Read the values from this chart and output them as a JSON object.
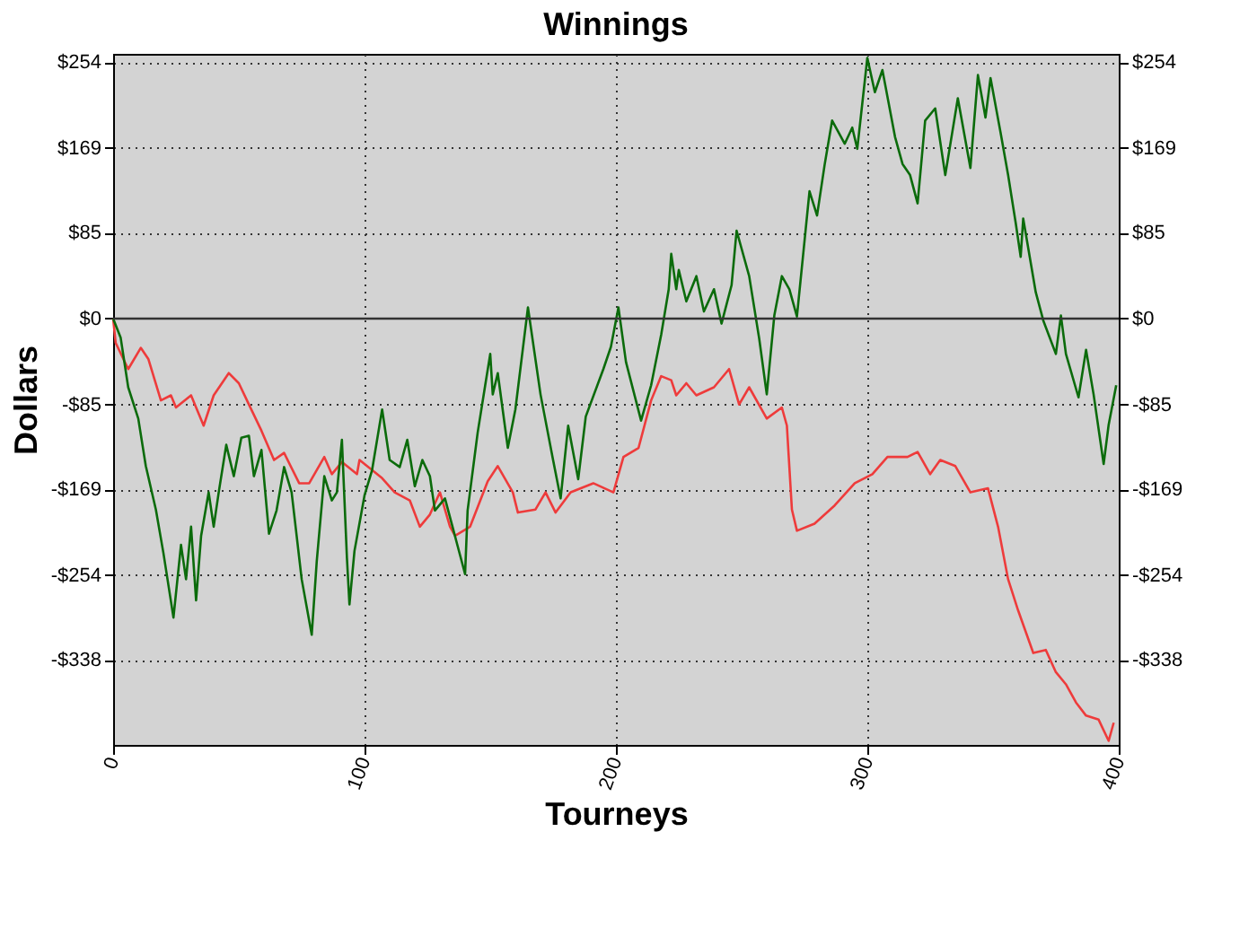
{
  "chart_data": {
    "type": "line",
    "title": "Winnings",
    "xlabel": "Tourneys",
    "ylabel": "Dollars",
    "xlim": [
      0,
      400
    ],
    "xticks": [
      0,
      100,
      200,
      300,
      400
    ],
    "ylim": [
      -422,
      262
    ],
    "yticks": [
      {
        "value": 254,
        "label": "$254"
      },
      {
        "value": 169,
        "label": "$169"
      },
      {
        "value": 85,
        "label": "$85"
      },
      {
        "value": 0,
        "label": "$0"
      },
      {
        "value": -85,
        "label": "-$85"
      },
      {
        "value": -169,
        "label": "-$169"
      },
      {
        "value": -254,
        "label": "-$254"
      },
      {
        "value": -338,
        "label": "-$338"
      }
    ],
    "y2lim": [
      -422,
      262
    ],
    "y2ticks": [
      {
        "value": 254,
        "label": "$254"
      },
      {
        "value": 169,
        "label": "$169"
      },
      {
        "value": 85,
        "label": "$85"
      },
      {
        "value": 0,
        "label": "$0"
      },
      {
        "value": -85,
        "label": "-$85"
      },
      {
        "value": -169,
        "label": "-$169"
      },
      {
        "value": -254,
        "label": "-$254"
      },
      {
        "value": -338,
        "label": "-$338"
      }
    ],
    "grid": true,
    "line_style": "solid",
    "marker": "none",
    "ref_lines": [
      {
        "axis": "y",
        "value": 0,
        "color": "#333333"
      }
    ],
    "series": [
      {
        "color": "#ee3b3b",
        "x": [
          0,
          1,
          6,
          11,
          14,
          19,
          23,
          25,
          31,
          36,
          40,
          46,
          50,
          54,
          59,
          64,
          68,
          74,
          78,
          84,
          87,
          91,
          97,
          98,
          107,
          112,
          118,
          122,
          126,
          130,
          134,
          136,
          142,
          149,
          153,
          159,
          161,
          168,
          172,
          176,
          182,
          191,
          199,
          203,
          209,
          214,
          218,
          222,
          224,
          228,
          232,
          239,
          245,
          249,
          253,
          260,
          266,
          268,
          270,
          272,
          279,
          287,
          295,
          302,
          308,
          316,
          320,
          325,
          329,
          335,
          341,
          348,
          352,
          356,
          360,
          366,
          371,
          375,
          379,
          383,
          387,
          392,
          396,
          398
        ],
        "values": [
          0,
          -24,
          -50,
          -29,
          -40,
          -81,
          -76,
          -88,
          -76,
          -106,
          -76,
          -54,
          -64,
          -85,
          -111,
          -140,
          -133,
          -163,
          -163,
          -137,
          -154,
          -142,
          -154,
          -140,
          -158,
          -172,
          -180,
          -206,
          -194,
          -172,
          -206,
          -215,
          -206,
          -161,
          -146,
          -172,
          -192,
          -189,
          -172,
          -192,
          -172,
          -163,
          -172,
          -137,
          -128,
          -81,
          -57,
          -61,
          -76,
          -64,
          -76,
          -68,
          -50,
          -85,
          -68,
          -99,
          -88,
          -106,
          -189,
          -210,
          -203,
          -185,
          -163,
          -154,
          -137,
          -137,
          -132,
          -154,
          -140,
          -146,
          -172,
          -168,
          -206,
          -258,
          -289,
          -331,
          -328,
          -350,
          -362,
          -380,
          -393,
          -397,
          -418,
          -400
        ]
      },
      {
        "color": "#0b6b0b",
        "x": [
          0,
          3,
          6,
          10,
          13,
          17,
          20,
          24,
          27,
          29,
          31,
          33,
          35,
          38,
          40,
          42,
          45,
          48,
          51,
          54,
          56,
          59,
          62,
          65,
          68,
          71,
          75,
          79,
          81,
          84,
          87,
          89,
          91,
          93,
          94,
          96,
          100,
          103,
          107,
          110,
          114,
          117,
          120,
          123,
          126,
          128,
          132,
          135,
          140,
          141,
          145,
          148,
          150,
          151,
          153,
          157,
          160,
          165,
          170,
          175,
          178,
          181,
          185,
          188,
          195,
          198,
          201,
          204,
          210,
          214,
          218,
          221,
          222,
          224,
          225,
          228,
          232,
          235,
          239,
          242,
          246,
          248,
          253,
          257,
          260,
          263,
          266,
          269,
          272,
          277,
          280,
          283,
          286,
          291,
          294,
          296,
          300,
          303,
          306,
          311,
          314,
          317,
          320,
          323,
          327,
          331,
          336,
          341,
          344,
          347,
          349,
          353,
          356,
          359,
          361,
          362,
          367,
          370,
          375,
          377,
          379,
          384,
          387,
          390,
          394,
          396,
          399
        ],
        "values": [
          0,
          -19,
          -68,
          -99,
          -146,
          -189,
          -232,
          -296,
          -224,
          -258,
          -206,
          -279,
          -215,
          -172,
          -206,
          -172,
          -125,
          -156,
          -118,
          -116,
          -156,
          -130,
          -213,
          -190,
          -147,
          -172,
          -258,
          -313,
          -240,
          -156,
          -180,
          -172,
          -120,
          -237,
          -283,
          -230,
          -175,
          -150,
          -90,
          -140,
          -147,
          -120,
          -166,
          -140,
          -156,
          -190,
          -178,
          -206,
          -253,
          -190,
          -113,
          -66,
          -35,
          -75,
          -54,
          -128,
          -90,
          11,
          -75,
          -140,
          -178,
          -106,
          -159,
          -97,
          -50,
          -28,
          11,
          -43,
          -101,
          -66,
          -16,
          29,
          64,
          29,
          48,
          17,
          42,
          7,
          29,
          -5,
          33,
          87,
          42,
          -20,
          -75,
          3,
          42,
          29,
          2,
          126,
          102,
          152,
          196,
          173,
          189,
          168,
          258,
          224,
          246,
          180,
          153,
          142,
          114,
          196,
          208,
          142,
          218,
          149,
          241,
          199,
          238,
          184,
          142,
          95,
          61,
          99,
          26,
          -2,
          -35,
          3,
          -35,
          -78,
          -31,
          -75,
          -144,
          -105,
          -66
        ]
      }
    ]
  }
}
